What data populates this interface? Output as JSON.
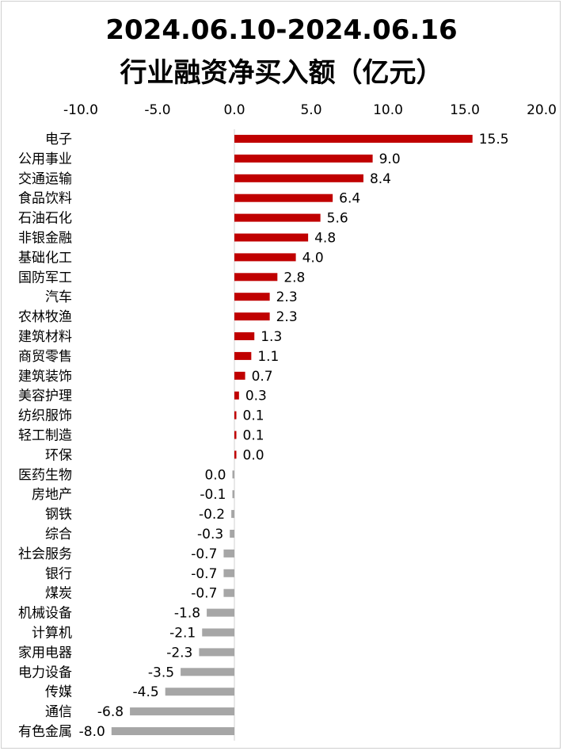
{
  "chart_data": {
    "type": "bar",
    "orientation": "horizontal",
    "title_line1": "2024.06.10-2024.06.16",
    "title_line2": "行业融资净买入额（亿元）",
    "xlim": [
      -10,
      20
    ],
    "xticks": [
      "-10.0",
      "-5.0",
      "0.0",
      "5.0",
      "10.0",
      "15.0",
      "20.0"
    ],
    "xtick_values": [
      -10,
      -5,
      0,
      5,
      10,
      15,
      20
    ],
    "axis_position": "top",
    "grid": false,
    "colors": {
      "positive": "#c00000",
      "negative": "#a6a6a6",
      "axis": "#d9d9d9",
      "text": "#000000"
    },
    "categories": [
      "电子",
      "公用事业",
      "交通运输",
      "食品饮料",
      "石油石化",
      "非银金融",
      "基础化工",
      "国防军工",
      "汽车",
      "农林牧渔",
      "建筑材料",
      "商贸零售",
      "建筑装饰",
      "美容护理",
      "纺织服饰",
      "轻工制造",
      "环保",
      "医药生物",
      "房地产",
      "钢铁",
      "综合",
      "社会服务",
      "银行",
      "煤炭",
      "机械设备",
      "计算机",
      "家用电器",
      "电力设备",
      "传媒",
      "通信",
      "有色金属"
    ],
    "values": [
      15.5,
      9.0,
      8.4,
      6.4,
      5.6,
      4.8,
      4.0,
      2.8,
      2.3,
      2.3,
      1.3,
      1.1,
      0.7,
      0.3,
      0.1,
      0.1,
      0.02,
      -0.02,
      -0.1,
      -0.2,
      -0.3,
      -0.7,
      -0.7,
      -0.7,
      -1.8,
      -2.1,
      -2.3,
      -3.5,
      -4.5,
      -6.8,
      -8.0
    ],
    "value_labels": [
      "15.5",
      "9.0",
      "8.4",
      "6.4",
      "5.6",
      "4.8",
      "4.0",
      "2.8",
      "2.3",
      "2.3",
      "1.3",
      "1.1",
      "0.7",
      "0.3",
      "0.1",
      "0.1",
      "0.0",
      "0.0",
      "-0.1",
      "-0.2",
      "-0.3",
      "-0.7",
      "-0.7",
      "-0.7",
      "-1.8",
      "-2.1",
      "-2.3",
      "-3.5",
      "-4.5",
      "-6.8",
      "-8.0"
    ]
  }
}
